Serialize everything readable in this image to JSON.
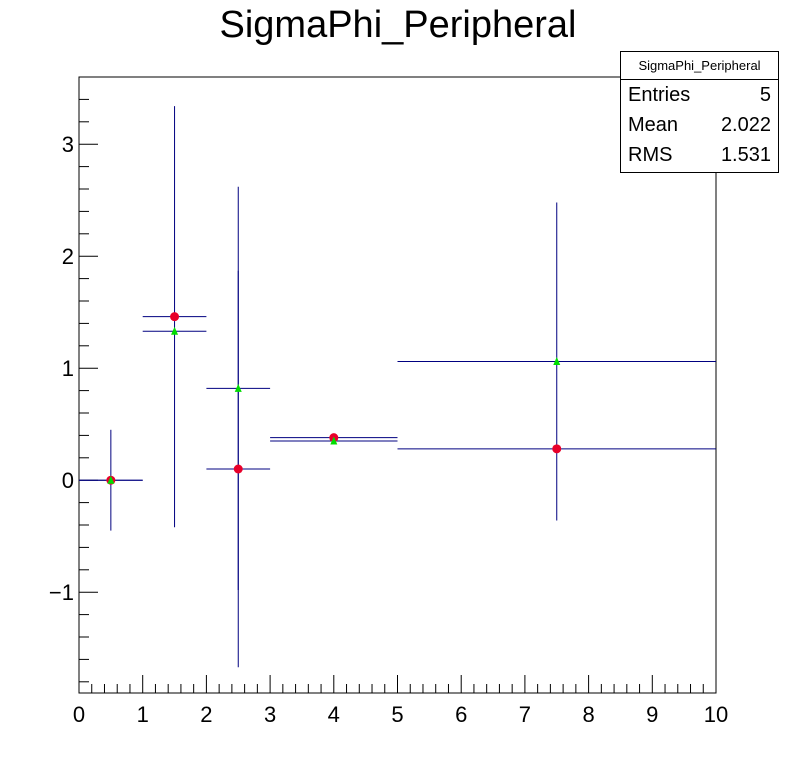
{
  "chart_data": {
    "type": "scatter",
    "title": "SigmaPhi_Peripheral",
    "xlabel": "",
    "ylabel": "",
    "xlim": [
      0,
      10
    ],
    "ylim": [
      -1.9,
      3.6
    ],
    "x_ticks": [
      0,
      1,
      2,
      3,
      4,
      5,
      6,
      7,
      8,
      9,
      10
    ],
    "y_ticks": [
      -1,
      0,
      1,
      2,
      3
    ],
    "y_tick_labels": [
      "−1",
      "0",
      "1",
      "2",
      "3"
    ],
    "grid": false,
    "series": [
      {
        "marker": "circle",
        "color": "#e8002a",
        "errorbar_color": "#000080",
        "points": [
          {
            "x": 0.5,
            "y": 0.0,
            "xerr": 0.5,
            "yerr": 0.45
          },
          {
            "x": 1.5,
            "y": 1.46,
            "xerr": 0.5,
            "yerr": 1.88
          },
          {
            "x": 2.5,
            "y": 0.1,
            "xerr": 0.5,
            "yerr": 1.77
          },
          {
            "x": 4.0,
            "y": 0.38,
            "xerr": 1.0,
            "yerr": 0.0
          },
          {
            "x": 7.5,
            "y": 0.28,
            "xerr": 2.5,
            "yerr": 0.0
          }
        ]
      },
      {
        "marker": "triangle",
        "color": "#00dd00",
        "errorbar_color": "#000080",
        "points": [
          {
            "x": 0.5,
            "y": 0.0,
            "xerr": 0.5,
            "yerr": 0.0
          },
          {
            "x": 1.5,
            "y": 1.33,
            "xerr": 0.5,
            "yerr": 0.0
          },
          {
            "x": 2.5,
            "y": 0.82,
            "xerr": 0.5,
            "yerr": 1.8
          },
          {
            "x": 4.0,
            "y": 0.35,
            "xerr": 1.0,
            "yerr": 0.0
          },
          {
            "x": 7.5,
            "y": 1.06,
            "xerr": 2.5,
            "yerr": 1.42
          }
        ]
      }
    ]
  },
  "stats_box": {
    "name": "SigmaPhi_Peripheral",
    "entries_label": "Entries",
    "entries_value": "5",
    "mean_label": "Mean",
    "mean_value": "2.022",
    "rms_label": "RMS",
    "rms_value": "1.531"
  }
}
